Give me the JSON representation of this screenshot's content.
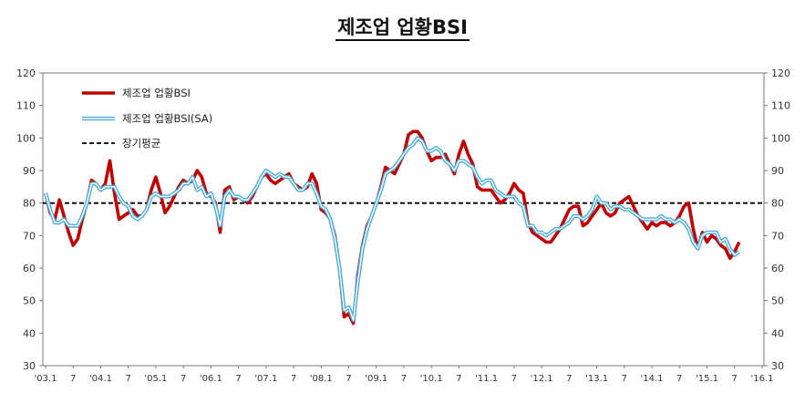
{
  "chart_data": {
    "type": "line",
    "title": "제조업 업황BSI",
    "xlabel": "",
    "ylabel": "",
    "ylim": [
      30,
      120
    ],
    "y_ticks": [
      30,
      40,
      50,
      60,
      70,
      80,
      90,
      100,
      110,
      120
    ],
    "x_tick_labels": [
      "'03.1",
      "7",
      "'04.1",
      "7",
      "'05.1",
      "7",
      "'06.1",
      "7",
      "'07.1",
      "7",
      "'08.1",
      "7",
      "'09.1",
      "7",
      "'10.1",
      "7",
      "'11.1",
      "7",
      "'12.1",
      "7",
      "'13.1",
      "7",
      "'14.1",
      "7",
      "'15.1",
      "7",
      "'16.1"
    ],
    "legend_position": "top-left",
    "grid": false,
    "reference_line": {
      "name": "장기평균",
      "value": 80
    },
    "series": [
      {
        "name": "제조업 업황BSI",
        "color": "#c00000",
        "values": [
          83,
          77,
          75,
          81,
          76,
          71,
          67,
          69,
          75,
          80,
          87,
          86,
          84,
          86,
          93,
          83,
          75,
          76,
          77,
          78,
          76,
          76,
          78,
          84,
          88,
          83,
          77,
          79,
          82,
          85,
          87,
          86,
          87,
          90,
          88,
          83,
          82,
          80,
          71,
          84,
          85,
          81,
          82,
          81,
          80,
          82,
          85,
          88,
          89,
          87,
          86,
          87,
          88,
          89,
          86,
          85,
          84,
          85,
          89,
          86,
          78,
          77,
          75,
          70,
          60,
          45,
          46,
          43,
          58,
          67,
          73,
          76,
          80,
          85,
          91,
          90,
          89,
          92,
          95,
          101,
          102,
          102,
          100,
          96,
          93,
          94,
          94,
          95,
          92,
          89,
          95,
          99,
          95,
          92,
          85,
          84,
          84,
          84,
          82,
          80,
          81,
          83,
          86,
          84,
          83,
          74,
          71,
          70,
          69,
          68,
          68,
          70,
          72,
          75,
          78,
          79,
          79,
          73,
          74,
          76,
          78,
          80,
          77,
          76,
          77,
          80,
          81,
          82,
          79,
          76,
          74,
          72,
          74,
          73,
          74,
          74,
          73,
          74,
          76,
          79,
          80,
          72,
          66,
          71,
          68,
          70,
          69,
          67,
          66,
          63,
          65,
          68
        ]
      },
      {
        "name": "제조업 업황BSI(SA)",
        "color": "#4aaad8",
        "values": [
          83,
          78,
          74,
          74,
          75,
          73,
          73,
          73,
          76,
          80,
          86,
          86,
          84,
          85,
          85,
          85,
          82,
          80,
          79,
          76,
          75,
          76,
          78,
          82,
          83,
          82,
          82,
          82,
          83,
          84,
          86,
          86,
          88,
          84,
          85,
          82,
          83,
          79,
          73,
          82,
          84,
          82,
          82,
          81,
          81,
          83,
          85,
          88,
          90,
          89,
          88,
          89,
          88,
          88,
          86,
          84,
          84,
          86,
          86,
          83,
          79,
          78,
          75,
          69,
          60,
          47,
          48,
          44,
          56,
          66,
          72,
          76,
          80,
          84,
          89,
          90,
          91,
          93,
          95,
          97,
          98,
          100,
          99,
          96,
          96,
          97,
          96,
          93,
          92,
          90,
          93,
          93,
          92,
          91,
          88,
          86,
          87,
          87,
          84,
          83,
          82,
          82,
          82,
          80,
          79,
          73,
          73,
          71,
          71,
          70,
          71,
          72,
          72,
          73,
          74,
          76,
          76,
          75,
          76,
          78,
          82,
          80,
          80,
          78,
          79,
          79,
          78,
          78,
          77,
          76,
          75,
          75,
          75,
          75,
          76,
          75,
          75,
          74,
          75,
          74,
          72,
          68,
          66,
          70,
          71,
          71,
          71,
          68,
          69,
          66,
          64,
          65
        ]
      },
      {
        "name": "장기평균",
        "color": "#000000",
        "style": "dashed",
        "values": [
          80
        ]
      }
    ]
  }
}
